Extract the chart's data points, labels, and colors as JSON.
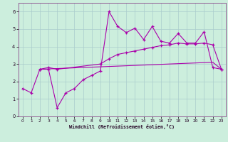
{
  "xlabel": "Windchill (Refroidissement éolien,°C)",
  "background_color": "#cceedd",
  "grid_color": "#aacccc",
  "line_color": "#aa00aa",
  "xlim_min": -0.5,
  "xlim_max": 23.5,
  "ylim_min": 0,
  "ylim_max": 6.5,
  "xticks": [
    0,
    1,
    2,
    3,
    4,
    5,
    6,
    7,
    8,
    9,
    10,
    11,
    12,
    13,
    14,
    15,
    16,
    17,
    18,
    19,
    20,
    21,
    22,
    23
  ],
  "yticks": [
    0,
    1,
    2,
    3,
    4,
    5,
    6
  ],
  "line1_x": [
    0,
    1,
    2,
    3,
    4,
    5,
    6,
    7,
    8,
    9,
    10,
    11,
    12,
    13,
    14,
    15,
    16,
    17,
    18,
    19,
    20,
    21,
    22,
    23
  ],
  "line1_y": [
    1.6,
    1.35,
    2.7,
    2.7,
    0.5,
    1.35,
    1.6,
    2.1,
    2.35,
    2.6,
    6.0,
    5.15,
    4.8,
    5.05,
    4.4,
    5.15,
    4.3,
    4.2,
    4.75,
    4.2,
    4.2,
    4.85,
    2.8,
    2.7
  ],
  "line2_x": [
    2,
    3,
    4,
    9,
    10,
    11,
    12,
    13,
    14,
    15,
    16,
    17,
    18,
    19,
    20,
    21,
    22,
    23
  ],
  "line2_y": [
    2.7,
    2.8,
    2.7,
    3.0,
    3.3,
    3.55,
    3.65,
    3.75,
    3.85,
    3.95,
    4.05,
    4.1,
    4.2,
    4.15,
    4.15,
    4.2,
    4.1,
    2.7
  ],
  "line3_x": [
    2,
    3,
    4,
    5,
    6,
    7,
    8,
    9,
    10,
    11,
    12,
    13,
    14,
    15,
    16,
    17,
    18,
    19,
    20,
    21,
    22,
    23
  ],
  "line3_y": [
    2.7,
    2.72,
    2.74,
    2.76,
    2.78,
    2.8,
    2.82,
    2.84,
    2.86,
    2.88,
    2.9,
    2.92,
    2.94,
    2.96,
    2.98,
    3.0,
    3.02,
    3.04,
    3.06,
    3.08,
    3.1,
    2.7
  ]
}
